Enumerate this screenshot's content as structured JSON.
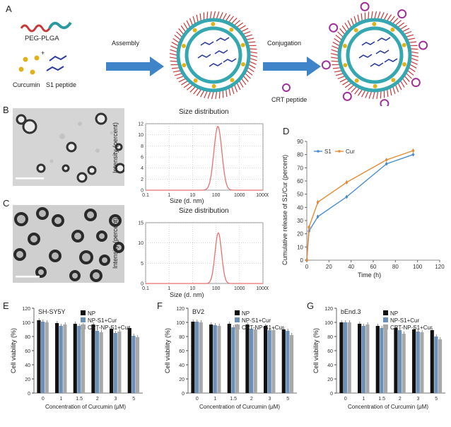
{
  "letters": {
    "A": "A",
    "B": "B",
    "C": "C",
    "D": "D",
    "E": "E",
    "F": "F",
    "G": "G"
  },
  "schematic": {
    "peg_label": "PEG-PLGA",
    "plus": "+",
    "curcumin_label": "Curcumin",
    "s1_label": "S1 peptide",
    "assembly_label": "Assembly",
    "conjugation_label": "Conjugation",
    "crt_label": "CRT peptide"
  },
  "colors": {
    "peg_red": "#c63a3a",
    "peg_teal": "#2a9aa0",
    "curcumin": "#e0b21a",
    "peptide": "#2b3a9e",
    "crt": "#a0309a",
    "arrow": "#3f83c9",
    "shell": "#34a7b0",
    "dls_line": "#e8716f",
    "s1_line": "#4a8fd1",
    "cur_line": "#e58b33",
    "bar_np": "#111111",
    "bar_nps1": "#6c90b8",
    "bar_crt": "#a8a8a8"
  },
  "chart_data": [
    {
      "id": "B-dls",
      "type": "line",
      "title": "Size distribution",
      "xlabel": "Size (d. nm)",
      "ylabel": "Intensity (percent)",
      "xscale": "log",
      "xticks": [
        "0.1",
        "1",
        "10",
        "100",
        "1000",
        "10000"
      ],
      "yticks": [
        0,
        2,
        4,
        6,
        8,
        10,
        12
      ],
      "ylim": [
        0,
        12
      ],
      "grid": true,
      "peak_center": 120,
      "peak_height": 11.5,
      "peak_sigma_decades": 0.17
    },
    {
      "id": "C-dls",
      "type": "line",
      "title": "Size distribution",
      "xlabel": "Size (d. nm)",
      "ylabel": "Intensity (percent)",
      "xscale": "log",
      "xticks": [
        "0.1",
        "1",
        "10",
        "100",
        "1000",
        "10000"
      ],
      "yticks": [
        0,
        5,
        10,
        15
      ],
      "ylim": [
        0,
        15
      ],
      "grid": true,
      "peak_center": 125,
      "peak_height": 12.5,
      "peak_sigma_decades": 0.14
    },
    {
      "id": "D-release",
      "type": "line",
      "xlabel": "Time (h)",
      "ylabel": "Cumulative release of S1/Cur (percent)",
      "xlim": [
        0,
        120
      ],
      "ylim": [
        0,
        90
      ],
      "xticks": [
        0,
        20,
        40,
        60,
        80,
        100,
        120
      ],
      "yticks": [
        0,
        10,
        20,
        30,
        40,
        50,
        60,
        70,
        80,
        90
      ],
      "legend": "top-left",
      "series": [
        {
          "name": "S1",
          "x": [
            0,
            2,
            10,
            36,
            72,
            96
          ],
          "y": [
            0,
            22,
            33,
            48,
            73,
            80
          ]
        },
        {
          "name": "Cur",
          "x": [
            0,
            2,
            10,
            36,
            72,
            96
          ],
          "y": [
            0,
            25,
            44,
            59,
            76,
            83
          ]
        }
      ]
    },
    {
      "id": "E-viability",
      "type": "bar",
      "subtitle": "SH-SY5Y",
      "xlabel": "Concentration of Curcumin (μM)",
      "ylabel": "Cell viability (%)",
      "categories": [
        "0",
        "1",
        "1.5",
        "2",
        "3",
        "5"
      ],
      "ylim": [
        0,
        120
      ],
      "yticks": [
        0,
        20,
        40,
        60,
        80,
        100,
        120
      ],
      "legend": "top-right",
      "series": [
        {
          "name": "NP",
          "values": [
            103,
            99,
            98,
            97,
            91,
            92
          ]
        },
        {
          "name": "NP-S1+Cur",
          "values": [
            101,
            95,
            95,
            88,
            85,
            81
          ]
        },
        {
          "name": "CRT-NP-S1+Cur",
          "values": [
            100,
            97,
            96,
            86,
            87,
            79
          ]
        }
      ]
    },
    {
      "id": "F-viability",
      "type": "bar",
      "subtitle": "BV2",
      "xlabel": "Concentration of Curcumin (μM)",
      "ylabel": "Cell viability (%)",
      "categories": [
        "0",
        "1",
        "1.5",
        "2",
        "3",
        "5"
      ],
      "ylim": [
        0,
        120
      ],
      "yticks": [
        0,
        20,
        40,
        60,
        80,
        100,
        120
      ],
      "legend": "top-right",
      "series": [
        {
          "name": "NP",
          "values": [
            101,
            97,
            98,
            97,
            95,
            90
          ]
        },
        {
          "name": "NP-S1+Cur",
          "values": [
            101,
            96,
            93,
            91,
            89,
            88
          ]
        },
        {
          "name": "CRT-NP-S1+Cur",
          "values": [
            100,
            95,
            95,
            90,
            89,
            82
          ]
        }
      ]
    },
    {
      "id": "G-viability",
      "type": "bar",
      "subtitle": "bEnd.3",
      "xlabel": "Concentration of Curcumin (μM)",
      "ylabel": "Cell viability (%)",
      "categories": [
        "0",
        "1",
        "1.5",
        "2",
        "3",
        "5"
      ],
      "ylim": [
        0,
        120
      ],
      "yticks": [
        0,
        20,
        40,
        60,
        80,
        100,
        120
      ],
      "legend": "top-right",
      "series": [
        {
          "name": "NP",
          "values": [
            100,
            98,
            95,
            92,
            90,
            89
          ]
        },
        {
          "name": "NP-S1+Cur",
          "values": [
            100,
            95,
            92,
            89,
            87,
            80
          ]
        },
        {
          "name": "CRT-NP-S1+Cur",
          "values": [
            100,
            97,
            90,
            84,
            86,
            76
          ]
        }
      ]
    }
  ]
}
